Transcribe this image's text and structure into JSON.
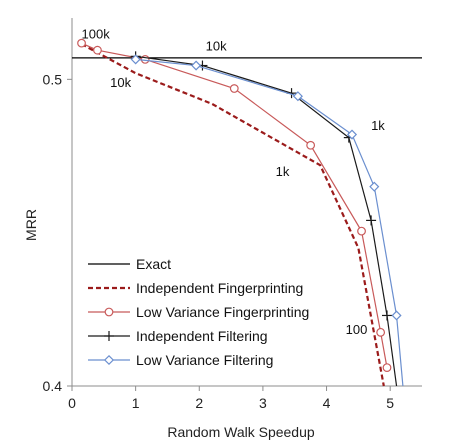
{
  "chart_data": {
    "type": "line",
    "title": "",
    "xlabel": "Random Walk Speedup",
    "ylabel": "MRR",
    "xlim": [
      0,
      5.5
    ],
    "ylim": [
      0.4,
      0.52
    ],
    "xticks": [
      "0",
      "1",
      "2",
      "3",
      "4",
      "5"
    ],
    "yticks": [
      "0.4",
      "0.5"
    ],
    "ytick_values": [
      0.4,
      0.5
    ],
    "xtick_values": [
      0,
      1,
      2,
      3,
      4,
      5
    ],
    "legend_placement": "bottom-left",
    "series": [
      {
        "name": "Exact",
        "color": "#000000",
        "style": "solid",
        "marker": "none",
        "x": [
          0,
          5.5
        ],
        "y": [
          0.507,
          0.507
        ]
      },
      {
        "name": "Independent Fingerprinting",
        "color": "#9b1b1b",
        "style": "dashed",
        "marker": "none",
        "x": [
          0.15,
          1.0,
          2.2,
          3.9,
          4.5,
          4.9
        ],
        "y": [
          0.5115,
          0.502,
          0.492,
          0.472,
          0.445,
          0.4
        ]
      },
      {
        "name": "Low Variance Fingerprinting",
        "color": "#c85a5a",
        "style": "solid",
        "marker": "circle",
        "x": [
          0.15,
          0.4,
          1.15,
          2.55,
          3.75,
          4.55,
          4.85,
          4.95
        ],
        "y": [
          0.5118,
          0.5095,
          0.5065,
          0.497,
          0.4785,
          0.4505,
          0.4175,
          0.406
        ]
      },
      {
        "name": "Independent Filtering",
        "color": "#1a1a1a",
        "style": "solid",
        "marker": "plus",
        "x": [
          1.0,
          2.05,
          3.45,
          4.35,
          4.7,
          4.95,
          5.1
        ],
        "y": [
          0.5075,
          0.5045,
          0.4955,
          0.481,
          0.454,
          0.423,
          0.4
        ]
      },
      {
        "name": "Low Variance Filtering",
        "color": "#6b8fcf",
        "style": "solid",
        "marker": "diamond",
        "x": [
          1.0,
          1.95,
          3.55,
          4.4,
          4.75,
          5.1,
          5.2
        ],
        "y": [
          0.5065,
          0.5045,
          0.4945,
          0.482,
          0.465,
          0.423,
          0.4
        ]
      }
    ],
    "annotations": [
      {
        "text": "100k",
        "x": 0.15,
        "y": 0.5133
      },
      {
        "text": "10k",
        "x": 2.1,
        "y": 0.5094
      },
      {
        "text": "10k",
        "x": 0.6,
        "y": 0.4975
      },
      {
        "text": "1k",
        "x": 4.7,
        "y": 0.4835
      },
      {
        "text": "1k",
        "x": 3.2,
        "y": 0.4685
      },
      {
        "text": "100",
        "x": 4.3,
        "y": 0.417
      }
    ]
  }
}
